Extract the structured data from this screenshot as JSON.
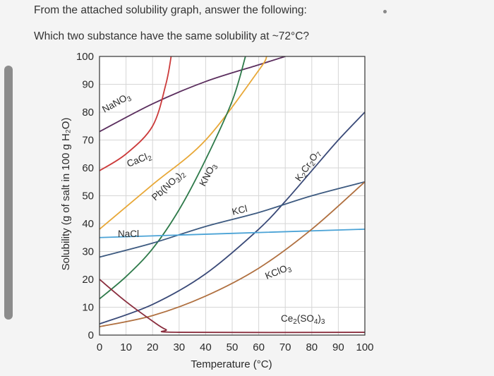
{
  "question": {
    "line1": "From the attached solubility graph, answer the following:",
    "line2": "Which two substance have the same solubility at ~72°C?"
  },
  "chart_data": {
    "type": "line",
    "xlabel": "Temperature (°C)",
    "ylabel": "Solubility (g of salt in 100 g H₂O)",
    "xlim": [
      0,
      100
    ],
    "ylim": [
      0,
      100
    ],
    "xticks": [
      "0",
      "10",
      "20",
      "30",
      "40",
      "50",
      "60",
      "70",
      "80",
      "90",
      "100"
    ],
    "yticks": [
      "0",
      "10",
      "20",
      "30",
      "40",
      "50",
      "60",
      "70",
      "80",
      "90",
      "100"
    ],
    "grid": true,
    "series": [
      {
        "name": "NaNO3",
        "label_html": "NaNO<sub>3</sub>",
        "color": "#5b2e5e",
        "x": [
          0,
          20,
          40,
          60,
          70
        ],
        "y": [
          73,
          83,
          91,
          97,
          100
        ]
      },
      {
        "name": "CaCl2",
        "label_html": "CaCl<sub>2</sub>",
        "color": "#cc3b3b",
        "x": [
          0,
          10,
          20,
          25,
          27
        ],
        "y": [
          59,
          65,
          75,
          90,
          100
        ]
      },
      {
        "name": "Pb(NO3)2",
        "label_html": "Pb(NO<sub>3</sub>)<sub>2</sub>",
        "color": "#e8a838",
        "x": [
          0,
          20,
          40,
          60,
          63
        ],
        "y": [
          38,
          54,
          70,
          95,
          100
        ]
      },
      {
        "name": "KNO3",
        "label_html": "KNO<sub>3</sub>",
        "color": "#2e7a4a",
        "x": [
          0,
          10,
          20,
          30,
          40,
          50,
          55
        ],
        "y": [
          13,
          21,
          31,
          45,
          63,
          84,
          100
        ]
      },
      {
        "name": "K2Cr2O7",
        "label_html": "K<sub>2</sub>Cr<sub>2</sub>O<sub>7</sub>",
        "color": "#3a4a78",
        "x": [
          0,
          20,
          40,
          60,
          70,
          80,
          90,
          100
        ],
        "y": [
          4,
          11,
          22,
          38,
          48,
          59,
          70,
          80
        ]
      },
      {
        "name": "KCl",
        "label_html": "KCl",
        "color": "#3d5a80",
        "x": [
          0,
          20,
          40,
          60,
          80,
          100
        ],
        "y": [
          28,
          33,
          39,
          44,
          50,
          55
        ]
      },
      {
        "name": "NaCl",
        "label_html": "NaCl",
        "color": "#4ba3d6",
        "x": [
          0,
          100
        ],
        "y": [
          35,
          38
        ]
      },
      {
        "name": "KClO3",
        "label_html": "KClO<sub>3</sub>",
        "color": "#b07040",
        "x": [
          0,
          20,
          40,
          60,
          80,
          100
        ],
        "y": [
          3,
          7,
          14,
          24,
          38,
          55
        ]
      },
      {
        "name": "Ce2(SO4)3",
        "label_html": "Ce<sub>2</sub>(SO<sub>4</sub>)<sub>3</sub>",
        "color": "#8a2e3e",
        "x": [
          0,
          10,
          20,
          25,
          30,
          100
        ],
        "y": [
          20,
          12,
          5,
          2,
          1,
          1
        ]
      }
    ]
  }
}
